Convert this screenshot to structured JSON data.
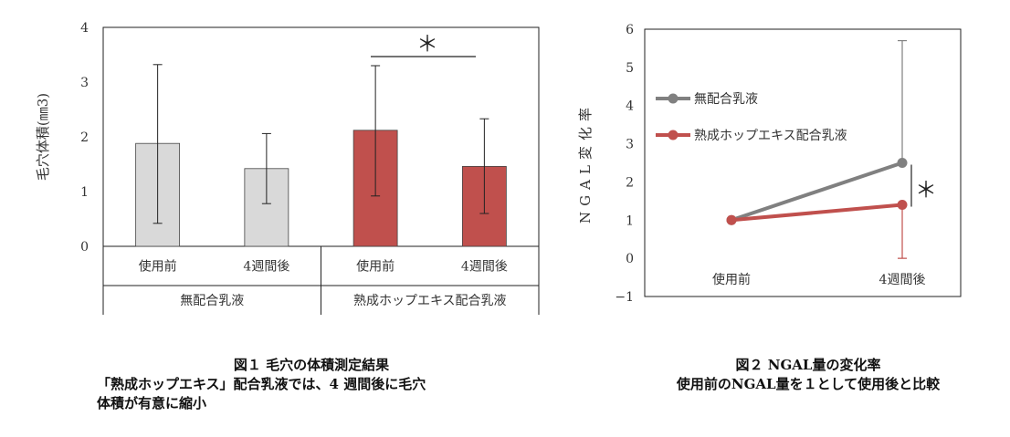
{
  "chart_data": [
    {
      "type": "bar",
      "ylabel": "毛穴体積(㎜3)",
      "ylim": [
        0,
        4
      ],
      "yticks": [
        "0",
        "1",
        "2",
        "3",
        "4"
      ],
      "categories": [
        "使用前",
        "4週間後",
        "使用前",
        "4週間後"
      ],
      "groups": [
        {
          "label": "無配合乳液",
          "color": "#d9d9d9"
        },
        {
          "label": "熟成ホップエキス配合乳液",
          "color": "#c0504d"
        }
      ],
      "values": [
        1.88,
        1.42,
        2.12,
        1.46
      ],
      "error_low": [
        0.42,
        0.78,
        0.92,
        0.6
      ],
      "error_high": [
        3.32,
        2.06,
        3.3,
        2.33
      ],
      "annotation": "＊",
      "grid": false
    },
    {
      "type": "line",
      "ylabel": "NGAL変化率",
      "ylim": [
        -1,
        6
      ],
      "yticks": [
        "−1",
        "0",
        "1",
        "2",
        "3",
        "4",
        "5",
        "6"
      ],
      "x": [
        "使用前",
        "4週間後"
      ],
      "series": [
        {
          "name": "無配合乳液",
          "values": [
            1.0,
            2.5
          ],
          "error_high": [
            null,
            5.7
          ],
          "color": "#808080"
        },
        {
          "name": "熟成ホップエキス配合乳液",
          "values": [
            1.0,
            1.4
          ],
          "error_low": [
            null,
            0.0
          ],
          "color": "#c0504d"
        }
      ],
      "annotation": "＊",
      "legend_position": "left",
      "grid": false
    }
  ],
  "captions": {
    "fig1_title": "図１ 毛穴の体積測定結果",
    "fig1_line1": "「熟成ホップエキス」配合乳液では、4 週間後に毛穴",
    "fig1_line2": "体積が有意に縮小",
    "fig2_title": "図２ NGAL量の変化率",
    "fig2_line1": "使用前のNGAL量を１として使用後と比較"
  }
}
